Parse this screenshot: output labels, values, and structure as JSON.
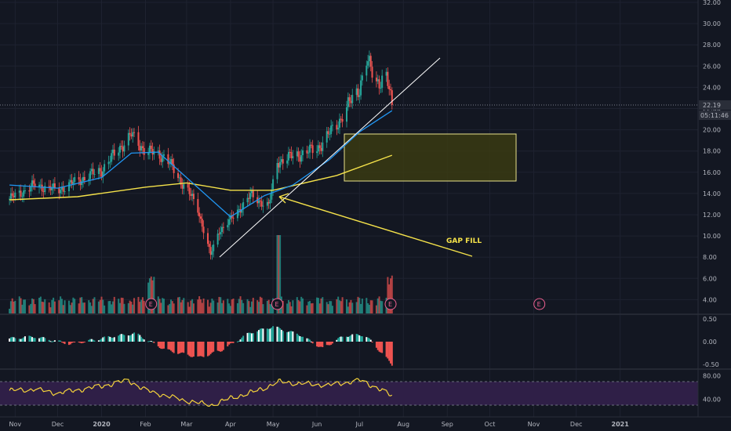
{
  "colors": {
    "background": "#131722",
    "grid": "#1e2230",
    "up": "#26a69a",
    "down": "#ef5350",
    "ema_fast": "#2196f3",
    "ma_slow": "#f5e24a",
    "trendline": "#ffffff",
    "gap_box_fill": "#3a3a12",
    "gap_box_border": "#e8e28a",
    "rsi_line": "#f5d33b",
    "rsi_band": "#2f1f47",
    "earnings_marker": "#f06292",
    "price_tag": "#2a2e39",
    "axis_text": "#b2b5be"
  },
  "price_axis": {
    "ticks": [
      "32.00",
      "30.00",
      "28.00",
      "26.00",
      "24.00",
      "22.00",
      "20.00",
      "18.00",
      "16.00",
      "14.00",
      "12.00",
      "10.00",
      "8.00",
      "6.00",
      "4.00"
    ],
    "current_price": "22.19",
    "countdown": "05:11:46"
  },
  "histogram_axis": {
    "ticks": [
      "0.50",
      "0.00",
      "-0.50"
    ]
  },
  "rsi_axis": {
    "ticks": [
      "80.00",
      "40.00"
    ]
  },
  "time_axis": {
    "labels": [
      "Nov",
      "Dec",
      "2020",
      "Feb",
      "Mar",
      "Apr",
      "May",
      "Jun",
      "Jul",
      "Aug",
      "Sep",
      "Oct",
      "Nov",
      "Dec",
      "2021"
    ]
  },
  "annotations": {
    "gap_fill_label": "GAP FILL"
  },
  "earnings_marker_label": "E",
  "chart_data": [
    {
      "type": "candlestick",
      "name": "price",
      "x_type": "time",
      "ylim": [
        3,
        33
      ],
      "events": {
        "earnings": [
          "2020-02-05",
          "2020-05-04",
          "2020-07-23",
          "2020-11-05"
        ]
      },
      "series": [
        {
          "name": "price_close_approx",
          "points": [
            [
              "2019-10-28",
              13.5
            ],
            [
              "2019-11-15",
              14.8
            ],
            [
              "2019-12-01",
              14.3
            ],
            [
              "2019-12-15",
              15.2
            ],
            [
              "2020-01-01",
              16.2
            ],
            [
              "2020-01-15",
              18.5
            ],
            [
              "2020-01-22",
              19.5
            ],
            [
              "2020-02-01",
              18.0
            ],
            [
              "2020-02-15",
              17.5
            ],
            [
              "2020-02-24",
              15.5
            ],
            [
              "2020-03-01",
              14.5
            ],
            [
              "2020-03-09",
              12.5
            ],
            [
              "2020-03-18",
              8.2
            ],
            [
              "2020-03-24",
              10.5
            ],
            [
              "2020-04-01",
              11.5
            ],
            [
              "2020-04-15",
              13.8
            ],
            [
              "2020-04-28",
              12.8
            ],
            [
              "2020-05-04",
              17.0
            ],
            [
              "2020-05-15",
              17.5
            ],
            [
              "2020-06-01",
              18.2
            ],
            [
              "2020-06-15",
              20.5
            ],
            [
              "2020-07-01",
              24.0
            ],
            [
              "2020-07-06",
              26.5
            ],
            [
              "2020-07-13",
              24.5
            ],
            [
              "2020-07-20",
              25.0
            ],
            [
              "2020-07-24",
              22.19
            ]
          ]
        },
        {
          "name": "ema_fast",
          "points": [
            [
              "2019-10-28",
              14.8
            ],
            [
              "2019-12-01",
              14.5
            ],
            [
              "2020-01-01",
              15.5
            ],
            [
              "2020-01-22",
              17.8
            ],
            [
              "2020-02-10",
              17.9
            ],
            [
              "2020-03-01",
              15.5
            ],
            [
              "2020-04-01",
              11.8
            ],
            [
              "2020-04-25",
              13.8
            ],
            [
              "2020-05-15",
              14.8
            ],
            [
              "2020-06-10",
              17.2
            ],
            [
              "2020-07-01",
              19.8
            ],
            [
              "2020-07-24",
              21.8
            ]
          ]
        },
        {
          "name": "ma_slow",
          "points": [
            [
              "2019-10-28",
              13.4
            ],
            [
              "2019-12-15",
              13.7
            ],
            [
              "2020-02-01",
              14.6
            ],
            [
              "2020-03-01",
              15.0
            ],
            [
              "2020-04-01",
              14.3
            ],
            [
              "2020-05-01",
              14.3
            ],
            [
              "2020-06-15",
              15.7
            ],
            [
              "2020-07-24",
              17.6
            ]
          ]
        }
      ]
    },
    {
      "type": "bar",
      "name": "histogram",
      "x_type": "time",
      "ylim": [
        -0.55,
        0.55
      ],
      "series": [
        {
          "name": "histogram",
          "points": [
            [
              "2019-10-28",
              0.07
            ],
            [
              "2019-11-15",
              0.11
            ],
            [
              "2019-12-10",
              -0.05
            ],
            [
              "2020-01-10",
              0.12
            ],
            [
              "2020-01-25",
              0.18
            ],
            [
              "2020-02-15",
              -0.18
            ],
            [
              "2020-03-10",
              -0.35
            ],
            [
              "2020-03-25",
              -0.2
            ],
            [
              "2020-04-15",
              0.2
            ],
            [
              "2020-05-01",
              0.33
            ],
            [
              "2020-05-20",
              0.15
            ],
            [
              "2020-06-05",
              -0.15
            ],
            [
              "2020-06-20",
              0.13
            ],
            [
              "2020-07-05",
              0.15
            ],
            [
              "2020-07-24",
              -0.5
            ]
          ]
        }
      ]
    },
    {
      "type": "line",
      "name": "rsi",
      "x_type": "time",
      "ylim": [
        20,
        90
      ],
      "band": [
        30,
        70
      ],
      "series": [
        {
          "name": "rsi",
          "points": [
            [
              "2019-10-28",
              55
            ],
            [
              "2019-11-15",
              57
            ],
            [
              "2019-12-01",
              50
            ],
            [
              "2020-01-01",
              62
            ],
            [
              "2020-01-20",
              72
            ],
            [
              "2020-02-01",
              55
            ],
            [
              "2020-02-25",
              40
            ],
            [
              "2020-03-18",
              30
            ],
            [
              "2020-04-01",
              42
            ],
            [
              "2020-04-20",
              55
            ],
            [
              "2020-05-05",
              70
            ],
            [
              "2020-05-25",
              66
            ],
            [
              "2020-06-10",
              64
            ],
            [
              "2020-07-01",
              72
            ],
            [
              "2020-07-13",
              60
            ],
            [
              "2020-07-24",
              45
            ]
          ]
        }
      ]
    }
  ]
}
